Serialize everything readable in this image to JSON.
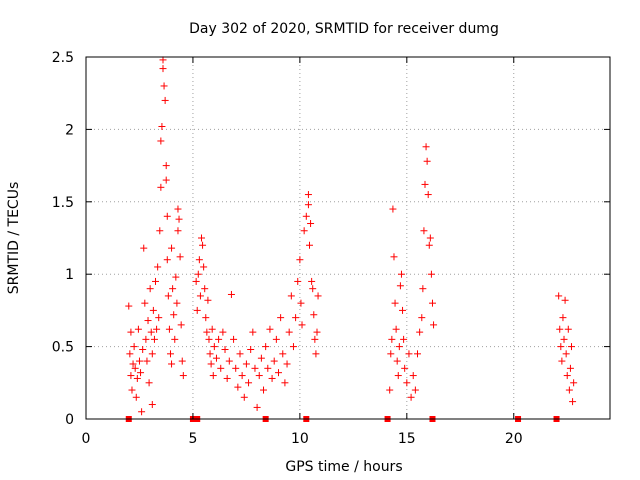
{
  "chart_data": {
    "type": "scatter",
    "title": "Day 302 of 2020, SRMTID for receiver dumg",
    "xlabel": "GPS time / hours",
    "ylabel": "SRMTID / TECUs",
    "xlim": [
      0,
      24.5
    ],
    "ylim": [
      0,
      2.5
    ],
    "x_ticks": [
      0,
      5,
      10,
      15,
      20
    ],
    "x_tick_labels": [
      "0",
      "5",
      "10",
      "15",
      "20"
    ],
    "y_ticks": [
      0,
      0.5,
      1,
      1.5,
      2,
      2.5
    ],
    "y_tick_labels": [
      "0",
      "0.5",
      "1",
      "1.5",
      "2",
      "2.5"
    ],
    "grid": true,
    "marker": "plus",
    "series_color": "#ff0000",
    "series": [
      {
        "name": "SRMTID",
        "points": [
          [
            2.0,
            0.78
          ],
          [
            2.05,
            0.45
          ],
          [
            2.1,
            0.6
          ],
          [
            2.1,
            0.3
          ],
          [
            2.15,
            0.2
          ],
          [
            2.2,
            0.38
          ],
          [
            2.25,
            0.5
          ],
          [
            2.3,
            0.35
          ],
          [
            2.35,
            0.15
          ],
          [
            2.4,
            0.28
          ],
          [
            2.45,
            0.62
          ],
          [
            2.5,
            0.4
          ],
          [
            2.55,
            0.32
          ],
          [
            2.6,
            0.05
          ],
          [
            2.65,
            0.48
          ],
          [
            2.7,
            1.18
          ],
          [
            2.75,
            0.8
          ],
          [
            2.8,
            0.55
          ],
          [
            2.85,
            0.4
          ],
          [
            2.9,
            0.68
          ],
          [
            2.95,
            0.25
          ],
          [
            3.0,
            0.9
          ],
          [
            3.05,
            0.6
          ],
          [
            3.1,
            0.45
          ],
          [
            3.1,
            0.1
          ],
          [
            3.15,
            0.75
          ],
          [
            3.2,
            0.55
          ],
          [
            3.25,
            0.95
          ],
          [
            3.3,
            0.62
          ],
          [
            3.35,
            1.05
          ],
          [
            3.4,
            0.7
          ],
          [
            3.45,
            1.3
          ],
          [
            3.5,
            1.6
          ],
          [
            3.5,
            1.92
          ],
          [
            3.55,
            2.02
          ],
          [
            3.6,
            2.48
          ],
          [
            3.6,
            2.42
          ],
          [
            3.65,
            2.3
          ],
          [
            3.7,
            2.2
          ],
          [
            3.75,
            1.75
          ],
          [
            3.75,
            1.65
          ],
          [
            3.8,
            1.4
          ],
          [
            3.8,
            1.1
          ],
          [
            3.85,
            0.85
          ],
          [
            3.9,
            0.62
          ],
          [
            3.95,
            0.45
          ],
          [
            4.0,
            0.38
          ],
          [
            4.0,
            1.18
          ],
          [
            4.05,
            0.9
          ],
          [
            4.1,
            0.72
          ],
          [
            4.15,
            0.55
          ],
          [
            4.2,
            0.98
          ],
          [
            4.25,
            0.8
          ],
          [
            4.3,
            1.45
          ],
          [
            4.3,
            1.3
          ],
          [
            4.35,
            1.38
          ],
          [
            4.4,
            1.12
          ],
          [
            4.45,
            0.65
          ],
          [
            4.5,
            0.4
          ],
          [
            4.55,
            0.3
          ],
          [
            5.15,
            0.95
          ],
          [
            5.2,
            0.75
          ],
          [
            5.25,
            1.0
          ],
          [
            5.3,
            1.1
          ],
          [
            5.35,
            0.85
          ],
          [
            5.4,
            1.25
          ],
          [
            5.45,
            1.2
          ],
          [
            5.5,
            1.05
          ],
          [
            5.55,
            0.9
          ],
          [
            5.6,
            0.7
          ],
          [
            5.65,
            0.6
          ],
          [
            5.7,
            0.82
          ],
          [
            5.75,
            0.55
          ],
          [
            5.8,
            0.45
          ],
          [
            5.85,
            0.38
          ],
          [
            5.9,
            0.62
          ],
          [
            5.95,
            0.3
          ],
          [
            6.0,
            0.5
          ],
          [
            6.1,
            0.42
          ],
          [
            6.2,
            0.55
          ],
          [
            6.3,
            0.35
          ],
          [
            6.4,
            0.6
          ],
          [
            6.5,
            0.48
          ],
          [
            6.6,
            0.28
          ],
          [
            6.7,
            0.4
          ],
          [
            6.8,
            0.86
          ],
          [
            6.9,
            0.55
          ],
          [
            7.0,
            0.35
          ],
          [
            7.1,
            0.22
          ],
          [
            7.2,
            0.45
          ],
          [
            7.3,
            0.3
          ],
          [
            7.4,
            0.15
          ],
          [
            7.5,
            0.38
          ],
          [
            7.6,
            0.25
          ],
          [
            7.7,
            0.48
          ],
          [
            7.8,
            0.6
          ],
          [
            7.9,
            0.35
          ],
          [
            8.0,
            0.08
          ],
          [
            8.1,
            0.3
          ],
          [
            8.2,
            0.42
          ],
          [
            8.3,
            0.2
          ],
          [
            8.4,
            0.5
          ],
          [
            8.5,
            0.35
          ],
          [
            8.6,
            0.62
          ],
          [
            8.7,
            0.28
          ],
          [
            8.8,
            0.4
          ],
          [
            8.9,
            0.55
          ],
          [
            9.0,
            0.32
          ],
          [
            9.1,
            0.7
          ],
          [
            9.2,
            0.45
          ],
          [
            9.3,
            0.25
          ],
          [
            9.4,
            0.38
          ],
          [
            9.5,
            0.6
          ],
          [
            9.6,
            0.85
          ],
          [
            9.7,
            0.5
          ],
          [
            9.8,
            0.7
          ],
          [
            9.9,
            0.95
          ],
          [
            10.0,
            1.1
          ],
          [
            10.05,
            0.8
          ],
          [
            10.1,
            0.65
          ],
          [
            10.2,
            1.3
          ],
          [
            10.3,
            1.4
          ],
          [
            10.4,
            1.55
          ],
          [
            10.4,
            1.48
          ],
          [
            10.45,
            1.2
          ],
          [
            10.5,
            1.35
          ],
          [
            10.55,
            0.95
          ],
          [
            10.6,
            0.9
          ],
          [
            10.65,
            0.72
          ],
          [
            10.7,
            0.55
          ],
          [
            10.75,
            0.45
          ],
          [
            10.8,
            0.6
          ],
          [
            10.85,
            0.85
          ],
          [
            14.2,
            0.2
          ],
          [
            14.25,
            0.45
          ],
          [
            14.3,
            0.55
          ],
          [
            14.35,
            1.45
          ],
          [
            14.4,
            1.12
          ],
          [
            14.45,
            0.8
          ],
          [
            14.5,
            0.62
          ],
          [
            14.55,
            0.4
          ],
          [
            14.6,
            0.3
          ],
          [
            14.65,
            0.5
          ],
          [
            14.7,
            0.92
          ],
          [
            14.75,
            1.0
          ],
          [
            14.8,
            0.75
          ],
          [
            14.85,
            0.55
          ],
          [
            14.9,
            0.35
          ],
          [
            15.0,
            0.25
          ],
          [
            15.1,
            0.45
          ],
          [
            15.2,
            0.15
          ],
          [
            15.3,
            0.3
          ],
          [
            15.4,
            0.2
          ],
          [
            15.5,
            0.45
          ],
          [
            15.6,
            0.6
          ],
          [
            15.7,
            0.7
          ],
          [
            15.75,
            0.9
          ],
          [
            15.8,
            1.3
          ],
          [
            15.85,
            1.62
          ],
          [
            15.9,
            1.88
          ],
          [
            15.95,
            1.78
          ],
          [
            16.0,
            1.55
          ],
          [
            16.05,
            1.2
          ],
          [
            16.1,
            1.25
          ],
          [
            16.15,
            1.0
          ],
          [
            16.2,
            0.8
          ],
          [
            16.25,
            0.65
          ],
          [
            22.1,
            0.85
          ],
          [
            22.15,
            0.62
          ],
          [
            22.2,
            0.5
          ],
          [
            22.25,
            0.4
          ],
          [
            22.3,
            0.7
          ],
          [
            22.35,
            0.55
          ],
          [
            22.4,
            0.82
          ],
          [
            22.45,
            0.45
          ],
          [
            22.5,
            0.3
          ],
          [
            22.55,
            0.62
          ],
          [
            22.6,
            0.2
          ],
          [
            22.65,
            0.35
          ],
          [
            22.7,
            0.5
          ],
          [
            22.75,
            0.12
          ],
          [
            22.8,
            0.25
          ]
        ]
      }
    ],
    "baseline_markers_x": [
      2.0,
      5.0,
      5.2,
      8.4,
      10.3,
      14.1,
      16.2,
      20.2,
      22.0
    ]
  }
}
